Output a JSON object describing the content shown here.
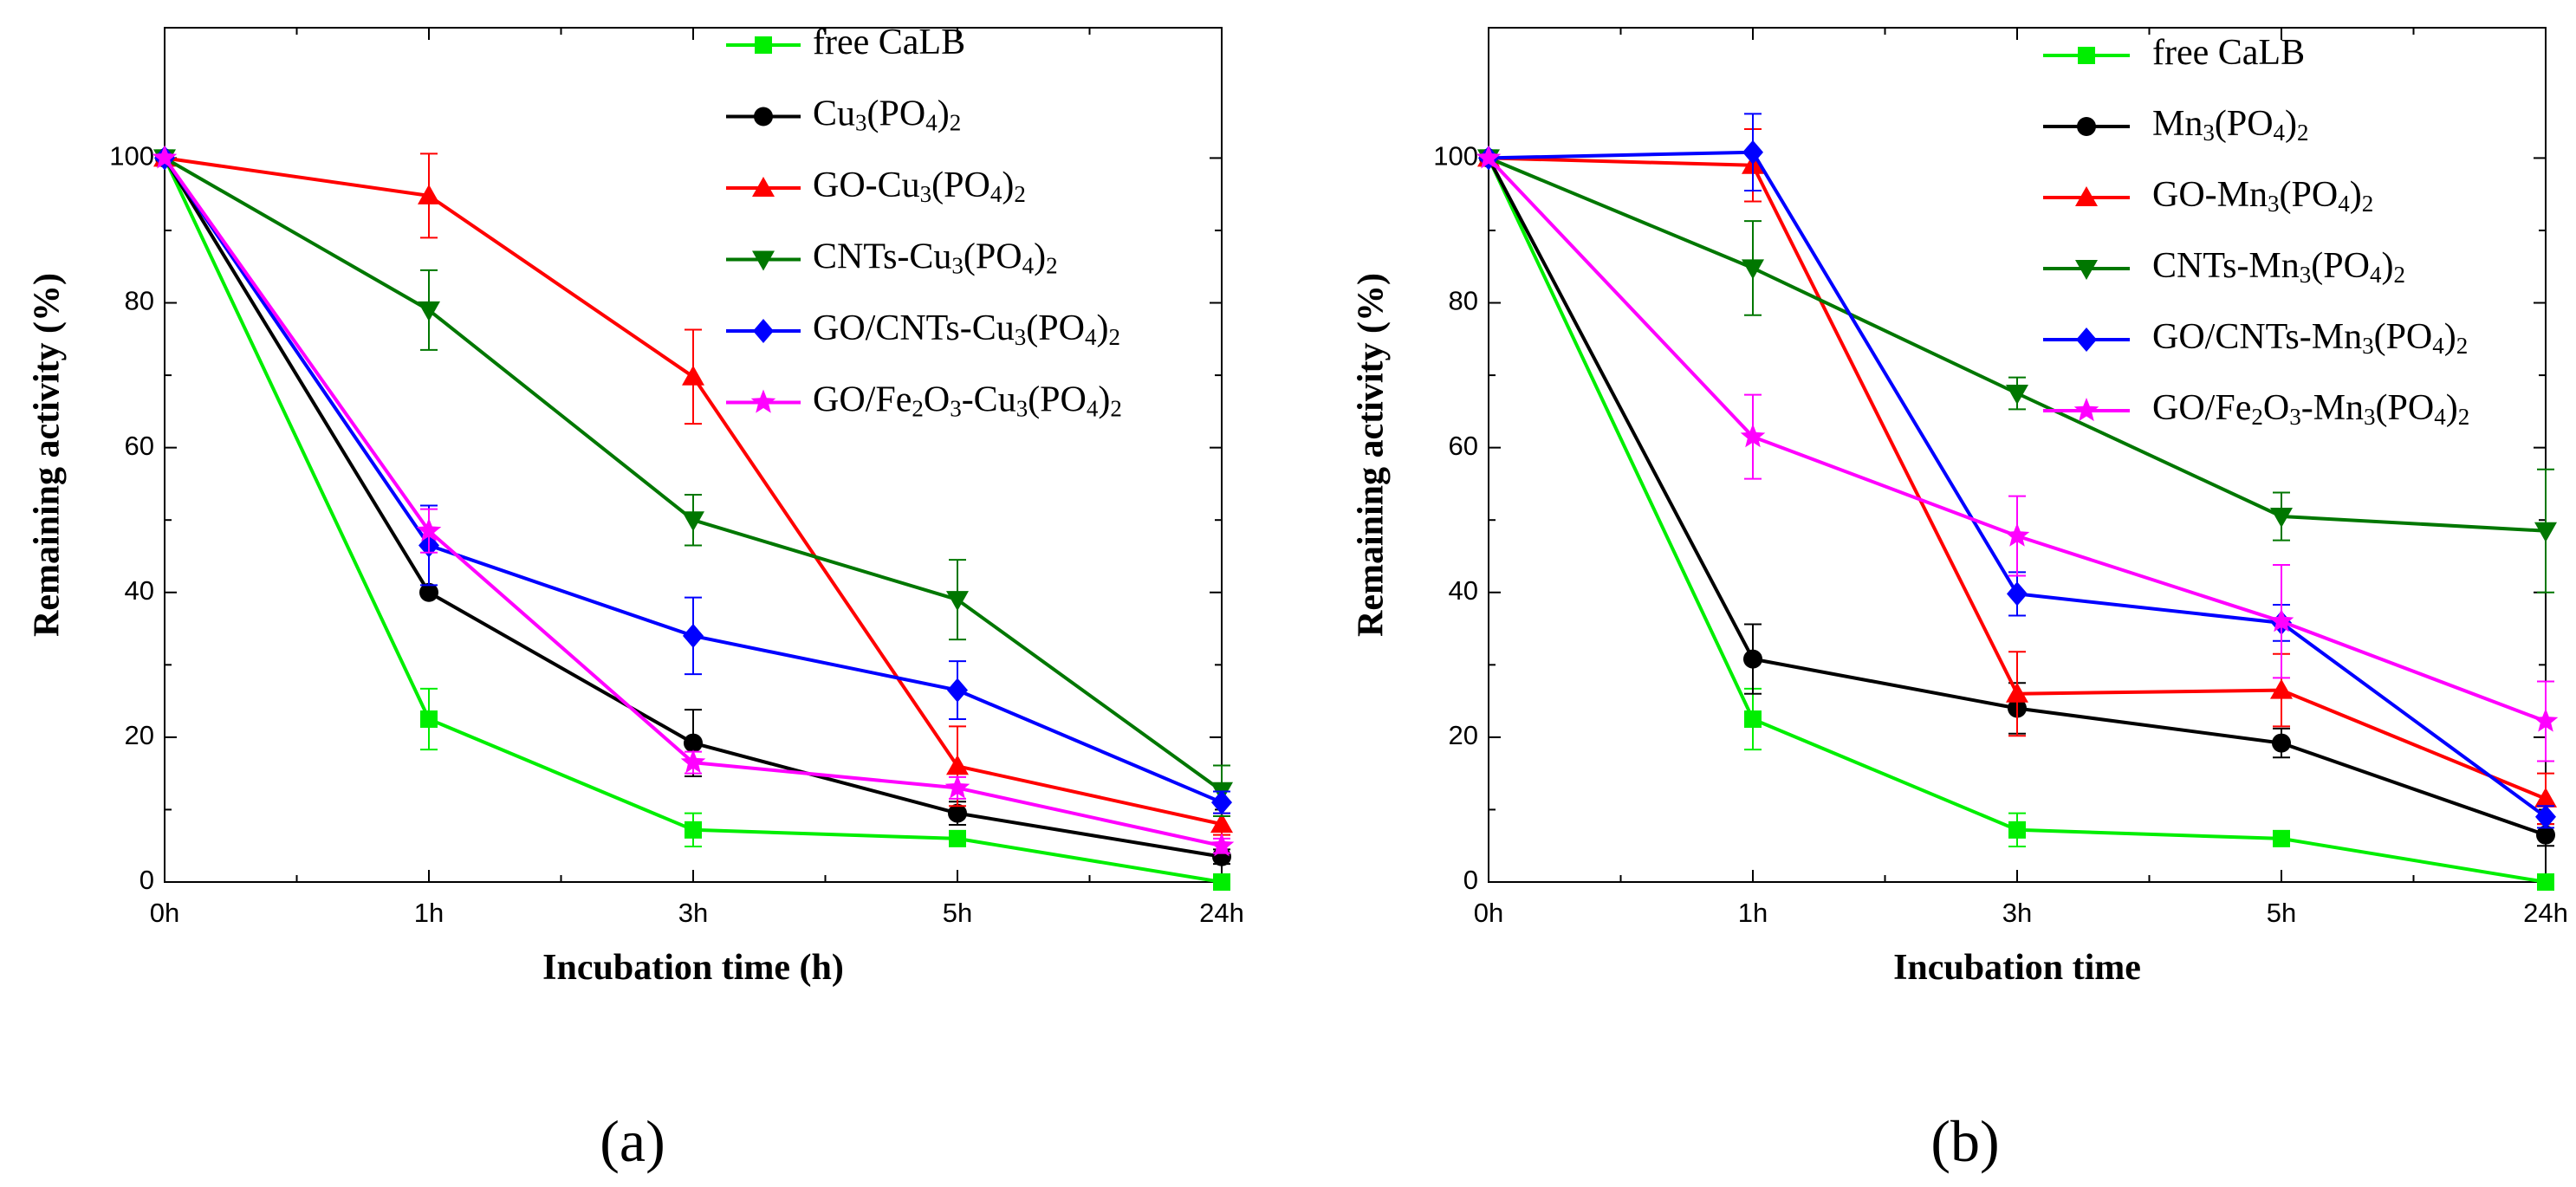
{
  "chart_data": [
    {
      "type": "line",
      "panel_label": "(a)",
      "title": "",
      "xlabel": "Incubation time (h)",
      "ylabel": "Remaining activity (%)",
      "categories": [
        "0h",
        "1h",
        "3h",
        "5h",
        "24h"
      ],
      "ylim": [
        0,
        118
      ],
      "yticks": [
        0,
        20,
        40,
        60,
        80,
        100
      ],
      "grid": false,
      "legend_position": "top-right",
      "series": [
        {
          "name": "free CaLB",
          "legend": [
            "free CaLB"
          ],
          "color": "#00ee00",
          "marker": "square",
          "values": [
            100,
            22.5,
            7.2,
            6,
            0
          ],
          "errors": [
            0,
            4.2,
            2.3,
            1.0,
            0
          ]
        },
        {
          "name": "Cu3(PO4)2",
          "legend": [
            "Cu",
            "3",
            "(PO",
            "4",
            ")",
            "2"
          ],
          "color": "#000000",
          "marker": "circle",
          "values": [
            100,
            40,
            19.2,
            9.5,
            3.5
          ],
          "errors": [
            0,
            0,
            4.6,
            1.6,
            1.0
          ]
        },
        {
          "name": "GO-Cu3(PO4)2",
          "legend": [
            "GO-Cu",
            "3",
            "(PO",
            "4",
            ")",
            "2"
          ],
          "color": "#ff0000",
          "marker": "triangle-up",
          "values": [
            100,
            94.8,
            69.8,
            16,
            8
          ],
          "errors": [
            0,
            5.8,
            6.5,
            5.5,
            1.5
          ]
        },
        {
          "name": "CNTs-Cu3(PO4)2",
          "legend": [
            "CNTs-Cu",
            "3",
            "(PO",
            "4",
            ")",
            "2"
          ],
          "color": "#007700",
          "marker": "triangle-down",
          "values": [
            100,
            79,
            50,
            39,
            12.6
          ],
          "errors": [
            0,
            5.5,
            3.5,
            5.5,
            3.5
          ]
        },
        {
          "name": "GO/CNTs-Cu3(PO4)2",
          "legend": [
            "GO/CNTs-Cu",
            "3",
            "(PO",
            "4",
            ")",
            "2"
          ],
          "color": "#0000ff",
          "marker": "diamond",
          "values": [
            100,
            46.5,
            34,
            26.5,
            11
          ],
          "errors": [
            0,
            5.5,
            5.3,
            4.0,
            1.5
          ]
        },
        {
          "name": "GO/Fe2O3-Cu3(PO4)2",
          "legend": [
            "GO/Fe",
            "2",
            "O",
            "3",
            "-Cu",
            "3",
            "(PO",
            "4",
            ")",
            "2"
          ],
          "color": "#ff00ff",
          "marker": "star",
          "values": [
            100,
            48.5,
            16.5,
            13,
            5
          ],
          "errors": [
            0,
            3.0,
            1.5,
            1.5,
            1.0
          ]
        }
      ]
    },
    {
      "type": "line",
      "panel_label": "(b)",
      "title": "",
      "xlabel": "Incubation time",
      "ylabel": "Remaining activity (%)",
      "categories": [
        "0h",
        "1h",
        "3h",
        "5h",
        "24h"
      ],
      "ylim": [
        0,
        118
      ],
      "yticks": [
        0,
        20,
        40,
        60,
        80,
        100
      ],
      "grid": false,
      "legend_position": "top-right",
      "series": [
        {
          "name": "free CaLB",
          "legend": [
            "free CaLB"
          ],
          "color": "#00ee00",
          "marker": "square",
          "values": [
            100,
            22.5,
            7.2,
            6,
            0
          ],
          "errors": [
            0,
            4.2,
            2.3,
            1.0,
            0
          ]
        },
        {
          "name": "Mn3(PO4)2",
          "legend": [
            "Mn",
            "3",
            "(PO",
            "4",
            ")",
            "2"
          ],
          "color": "#000000",
          "marker": "circle",
          "values": [
            100,
            30.8,
            24,
            19.2,
            6.5
          ],
          "errors": [
            0,
            4.8,
            3.5,
            2.0,
            1.5
          ]
        },
        {
          "name": "GO-Mn3(PO4)2",
          "legend": [
            "GO-Mn",
            "3",
            "(PO",
            "4",
            ")",
            "2"
          ],
          "color": "#ff0000",
          "marker": "triangle-up",
          "values": [
            100,
            99,
            26,
            26.5,
            11.5
          ],
          "errors": [
            0,
            5.0,
            5.8,
            5.0,
            3.5
          ]
        },
        {
          "name": "CNTs-Mn3(PO4)2",
          "legend": [
            "CNTs-Mn",
            "3",
            "(PO",
            "4",
            ")",
            "2"
          ],
          "color": "#007700",
          "marker": "triangle-down",
          "values": [
            100,
            84.8,
            67.5,
            50.5,
            48.5
          ],
          "errors": [
            0,
            6.5,
            2.2,
            3.3,
            8.5
          ]
        },
        {
          "name": "GO/CNTs-Mn3(PO4)2",
          "legend": [
            "GO/CNTs-Mn",
            "3",
            "(PO",
            "4",
            ")",
            "2"
          ],
          "color": "#0000ff",
          "marker": "diamond",
          "values": [
            100,
            100.8,
            39.8,
            35.8,
            9
          ],
          "errors": [
            0,
            5.3,
            3.0,
            2.5,
            1.5
          ]
        },
        {
          "name": "GO/Fe2O3-Mn3(PO4)2",
          "legend": [
            "GO/Fe",
            "2",
            "O",
            "3",
            "-Mn",
            "3",
            "(PO",
            "4",
            ")",
            "2"
          ],
          "color": "#ff00ff",
          "marker": "star",
          "values": [
            100,
            61.5,
            47.8,
            36,
            22.2
          ],
          "errors": [
            0,
            5.8,
            5.5,
            7.8,
            5.5
          ]
        }
      ]
    }
  ]
}
